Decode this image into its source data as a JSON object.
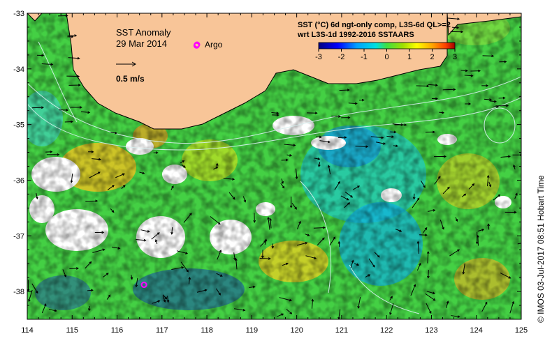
{
  "map": {
    "title": "SST Anomaly",
    "date": "29 Mar 2014",
    "argo_label": "Argo",
    "scale_label": "0.5 m/s",
    "info_line1": "SST (°C) 6d ngt-only comp, L3S-6d QL>=2",
    "info_line2": "wrt L3S-1d 1992-2016 SSTAARS",
    "credit": "© IMOS 03-Jul-2017 08:51 Hobart Time",
    "colors": {
      "land": "#f8c598",
      "nodata": "#ffffff",
      "coast": "#000000",
      "contour": "#d8f0f0",
      "argo": "#ff00ff"
    }
  },
  "axes": {
    "x_ticks": [
      "114",
      "115",
      "116",
      "117",
      "118",
      "119",
      "120",
      "121",
      "122",
      "123",
      "124",
      "125"
    ],
    "y_ticks": [
      "-33",
      "-34",
      "-35",
      "-36",
      "-37",
      "-38"
    ],
    "x_range": [
      114,
      125
    ],
    "y_range": [
      -33,
      -38.5
    ]
  },
  "colorbar": {
    "labels": [
      "-3",
      "-2",
      "-1",
      "0",
      "1",
      "2",
      "3"
    ],
    "range": [
      -3,
      3
    ],
    "stops": [
      "#000080",
      "#0000ff",
      "#00a0ff",
      "#00e0e0",
      "#40e040",
      "#a0e000",
      "#ffff00",
      "#ffa000",
      "#ff4000",
      "#a00000"
    ]
  },
  "argo_floats": [
    {
      "lon": 117.77,
      "lat": -33.58
    },
    {
      "lon": 116.6,
      "lat": -37.88
    }
  ]
}
